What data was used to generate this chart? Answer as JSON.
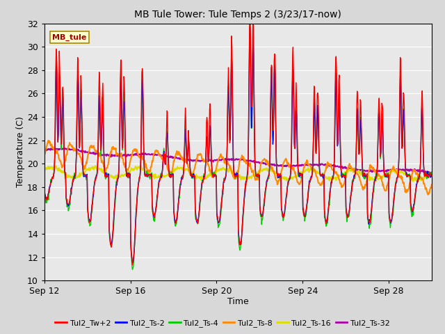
{
  "title": "MB Tule Tower: Tule Temps 2 (3/23/17-now)",
  "xlabel": "Time",
  "ylabel": "Temperature (C)",
  "ylim": [
    10,
    32
  ],
  "yticks": [
    10,
    12,
    14,
    16,
    18,
    20,
    22,
    24,
    26,
    28,
    30,
    32
  ],
  "xlim_days": [
    0,
    18
  ],
  "xtick_positions": [
    0,
    4,
    8,
    12,
    16
  ],
  "xtick_labels": [
    "Sep 12",
    "Sep 16",
    "Sep 20",
    "Sep 24",
    "Sep 28"
  ],
  "station_label": "MB_tule",
  "station_label_color": "#aa0000",
  "station_box_facecolor": "#ffffcc",
  "station_box_edgecolor": "#aa8800",
  "fig_bg_color": "#d8d8d8",
  "plot_bg_color": "#e8e8e8",
  "grid_color": "#ffffff",
  "series": [
    {
      "name": "Tul2_Tw+2",
      "color": "#ff0000",
      "lw": 1.0
    },
    {
      "name": "Tul2_Ts-2",
      "color": "#0000ff",
      "lw": 1.0
    },
    {
      "name": "Tul2_Ts-4",
      "color": "#00cc00",
      "lw": 1.0
    },
    {
      "name": "Tul2_Ts-8",
      "color": "#ff8800",
      "lw": 1.5
    },
    {
      "name": "Tul2_Ts-16",
      "color": "#dddd00",
      "lw": 1.5
    },
    {
      "name": "Tul2_Ts-32",
      "color": "#aa00aa",
      "lw": 1.5
    }
  ]
}
